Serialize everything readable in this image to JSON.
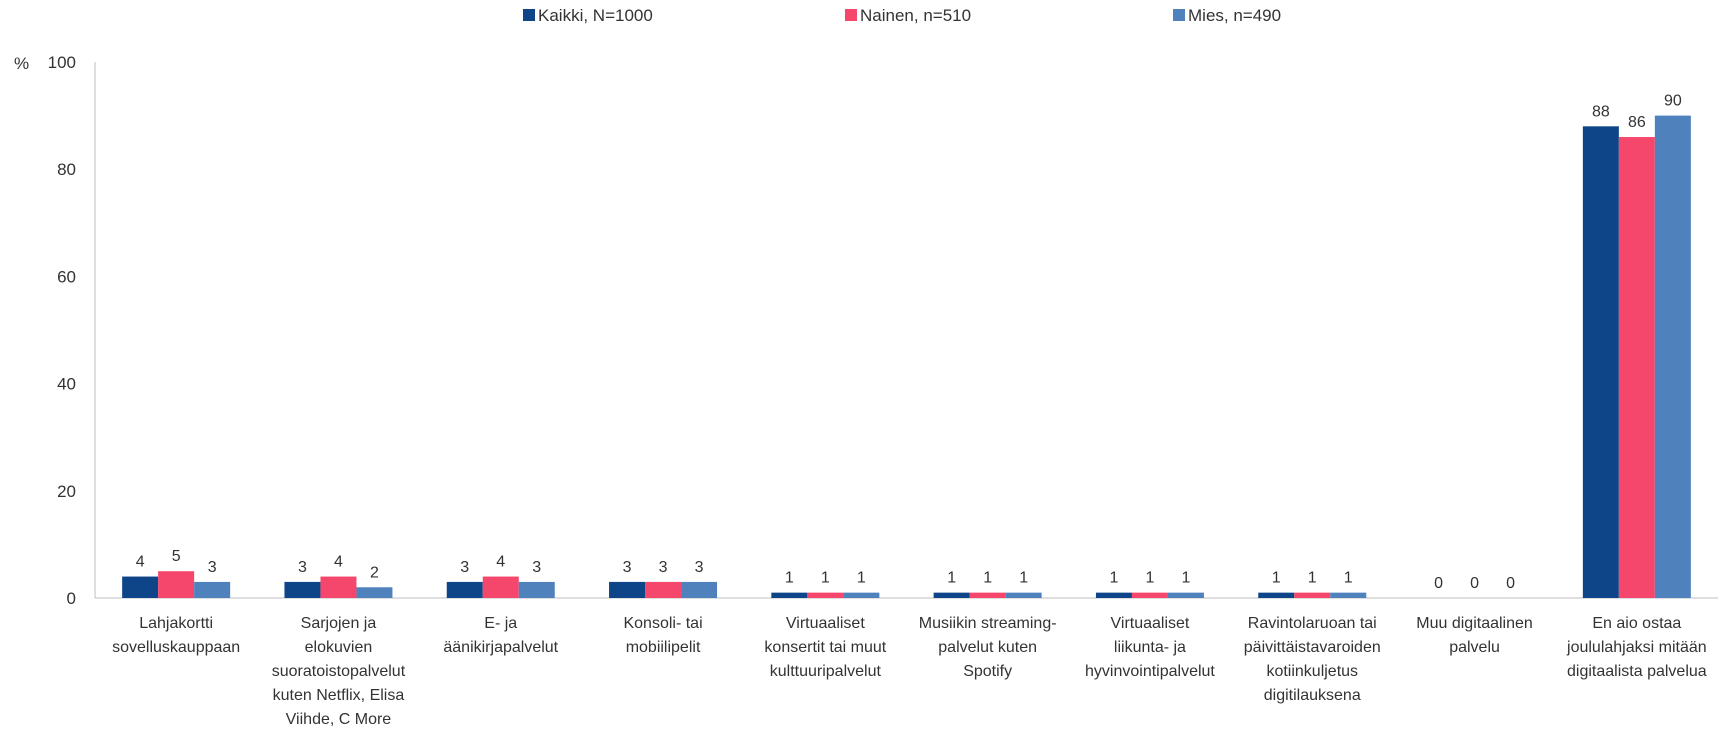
{
  "chart_data": {
    "type": "bar",
    "ylabel": "%",
    "ylim": [
      0,
      100
    ],
    "yticks": [
      0,
      20,
      40,
      60,
      80,
      100
    ],
    "legend_position": "top-center",
    "grid": false,
    "categories": [
      [
        "Lahjakortti",
        "sovelluskauppaan"
      ],
      [
        "Sarjojen ja",
        "elokuvien",
        "suoratoistopalvelut",
        "kuten Netflix, Elisa",
        "Viihde, C More"
      ],
      [
        "E- ja",
        "äänikirjapalvelut"
      ],
      [
        "Konsoli- tai",
        "mobiilipelit"
      ],
      [
        "Virtuaaliset",
        "konsertit tai muut",
        "kulttuuripalvelut"
      ],
      [
        "Musiikin streaming-",
        "palvelut kuten",
        "Spotify"
      ],
      [
        "Virtuaaliset",
        "liikunta- ja",
        "hyvinvointipalvelut"
      ],
      [
        "Ravintolaruoan tai",
        "päivittäistavaroiden",
        "kotiinkuljetus",
        "digitilauksena"
      ],
      [
        "Muu digitaalinen",
        "palvelu"
      ],
      [
        "En aio ostaa",
        "joululahjaksi mitään",
        "digitaalista palvelua"
      ]
    ],
    "series": [
      {
        "name": "Kaikki, N=1000",
        "color": "#0e4488",
        "values": [
          4,
          3,
          3,
          3,
          1,
          1,
          1,
          1,
          0,
          88
        ]
      },
      {
        "name": "Nainen, n=510",
        "color": "#f4476b",
        "values": [
          5,
          4,
          4,
          3,
          1,
          1,
          1,
          1,
          0,
          86
        ]
      },
      {
        "name": "Mies, n=490",
        "color": "#4f81bd",
        "values": [
          3,
          2,
          3,
          3,
          1,
          1,
          1,
          1,
          0,
          90
        ]
      }
    ]
  }
}
